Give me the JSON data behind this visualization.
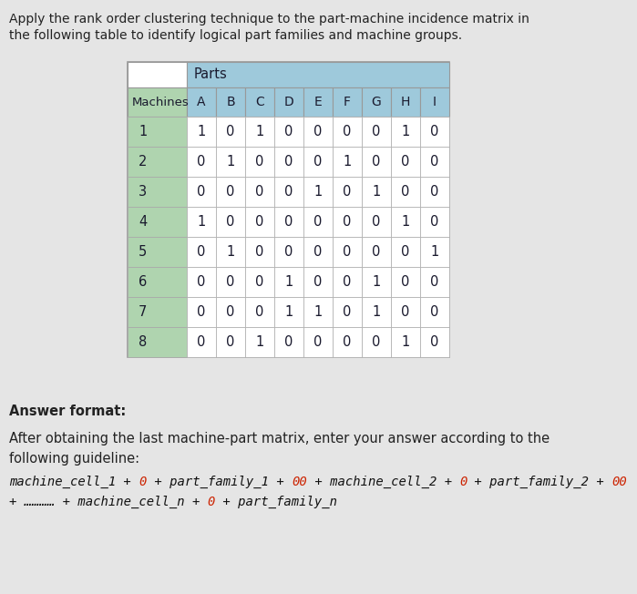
{
  "title_text1": "Apply the rank order clustering technique to the part-machine incidence matrix in",
  "title_text2": "the following table to identify logical part families and machine groups.",
  "parts_header": "Parts",
  "machines_label": "Machines",
  "col_headers": [
    "A",
    "B",
    "C",
    "D",
    "E",
    "F",
    "G",
    "H",
    "I"
  ],
  "row_headers": [
    "1",
    "2",
    "3",
    "4",
    "5",
    "6",
    "7",
    "8"
  ],
  "matrix": [
    [
      1,
      0,
      1,
      0,
      0,
      0,
      0,
      1,
      0
    ],
    [
      0,
      1,
      0,
      0,
      0,
      1,
      0,
      0,
      0
    ],
    [
      0,
      0,
      0,
      0,
      1,
      0,
      1,
      0,
      0
    ],
    [
      1,
      0,
      0,
      0,
      0,
      0,
      0,
      1,
      0
    ],
    [
      0,
      1,
      0,
      0,
      0,
      0,
      0,
      0,
      1
    ],
    [
      0,
      0,
      0,
      1,
      0,
      0,
      1,
      0,
      0
    ],
    [
      0,
      0,
      0,
      1,
      1,
      0,
      1,
      0,
      0
    ],
    [
      0,
      0,
      1,
      0,
      0,
      0,
      0,
      1,
      0
    ]
  ],
  "answer_format_label": "Answer format:",
  "answer_line1": "After obtaining the last machine-part matrix, enter your answer according to the",
  "answer_line2": "following guideline:",
  "bg_color": "#e5e5e5",
  "header_blue": "#9ec9db",
  "header_green": "#afd4af",
  "table_white": "#ffffff",
  "formula_red": "#cc2200",
  "formula_black": "#111111",
  "title_color": "#222222",
  "body_color": "#222222"
}
